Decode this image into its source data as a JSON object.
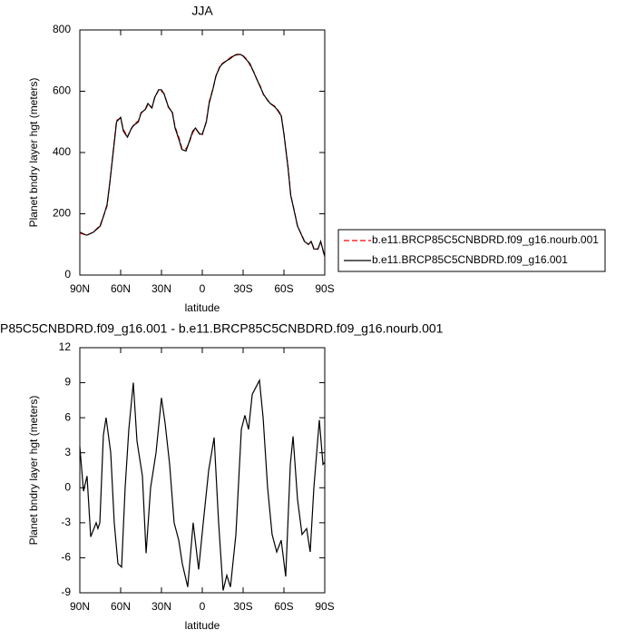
{
  "chart_data": [
    {
      "type": "line",
      "title": "JJA",
      "x_label": "latitude",
      "y_label": "Planet bndry layer hgt (meters)",
      "x": [
        90,
        85,
        80,
        75,
        72,
        70,
        68,
        65,
        63,
        60,
        58,
        55,
        52,
        50,
        47,
        45,
        42,
        40,
        37,
        35,
        32,
        30,
        28,
        25,
        22,
        20,
        17,
        15,
        12,
        10,
        7,
        5,
        2,
        0,
        -3,
        -5,
        -8,
        -10,
        -13,
        -15,
        -18,
        -20,
        -23,
        -25,
        -28,
        -30,
        -33,
        -35,
        -38,
        -40,
        -43,
        -45,
        -48,
        -50,
        -53,
        -55,
        -58,
        -60,
        -63,
        -65,
        -68,
        -70,
        -73,
        -75,
        -78,
        -80,
        -82,
        -85,
        -87,
        -90
      ],
      "series": [
        {
          "name": "b.e11.BRCP85C5CNBDRD.f09_g16.nourb.001",
          "color": "#ff0000",
          "dashed": true,
          "values": [
            137,
            130,
            140,
            163,
            200,
            225,
            298,
            425,
            505,
            512,
            475,
            452,
            478,
            494,
            503,
            528,
            540,
            555,
            547,
            578,
            606,
            600,
            592,
            548,
            532,
            484,
            446,
            414,
            412,
            428,
            465,
            478,
            462,
            458,
            502,
            564,
            612,
            648,
            683,
            692,
            700,
            708,
            717,
            718,
            721,
            716,
            703,
            685,
            662,
            640,
            613,
            588,
            572,
            560,
            552,
            542,
            523,
            462,
            355,
            262,
            202,
            158,
            132,
            112,
            100,
            110,
            88,
            85,
            108,
            58
          ]
        },
        {
          "name": "b.e11.BRCP85C5CNBDRD.f09_g16.001",
          "color": "#000000",
          "dashed": false,
          "values": [
            140,
            130,
            140,
            160,
            200,
            230,
            300,
            420,
            500,
            515,
            470,
            450,
            480,
            490,
            500,
            530,
            540,
            560,
            545,
            580,
            605,
            605,
            590,
            550,
            530,
            480,
            440,
            410,
            405,
            430,
            470,
            480,
            460,
            460,
            500,
            560,
            610,
            650,
            680,
            690,
            700,
            705,
            715,
            720,
            720,
            715,
            700,
            690,
            660,
            640,
            610,
            590,
            570,
            560,
            550,
            540,
            520,
            460,
            350,
            260,
            200,
            160,
            130,
            110,
            100,
            110,
            85,
            85,
            110,
            60
          ]
        }
      ],
      "xlim": [
        90,
        -90
      ],
      "xticks": [
        {
          "value": 90,
          "label": "90N"
        },
        {
          "value": 60,
          "label": "60N"
        },
        {
          "value": 30,
          "label": "30N"
        },
        0,
        {
          "value": -30,
          "label": "30S"
        },
        {
          "value": -60,
          "label": "60S"
        },
        {
          "value": -90,
          "label": "90S"
        }
      ],
      "ylim": [
        0,
        800
      ],
      "yticks": [
        0,
        200,
        400,
        600,
        800
      ],
      "legend": "right"
    },
    {
      "type": "line",
      "title": "P85C5CNBDRD.f09_g16.001 - b.e11.BRCP85C5CNBDRD.f09_g16.nourb.001",
      "x_label": "latitude",
      "y_label": "Planet bndry layer hgt (meters)",
      "x": [
        90,
        87.3,
        84.7,
        82,
        78,
        76.7,
        75.3,
        72.7,
        70.7,
        67.3,
        64.7,
        62,
        59.3,
        56.7,
        54,
        50.7,
        48,
        44,
        41.3,
        38,
        34,
        30,
        27.3,
        24,
        20.7,
        17.3,
        14.7,
        10.7,
        6.7,
        2.7,
        -0.7,
        -4.7,
        -8.7,
        -12,
        -15.3,
        -18,
        -20.7,
        -24.7,
        -28.7,
        -31.3,
        -34,
        -36.7,
        -42,
        -44.7,
        -48,
        -51.3,
        -54.7,
        -58,
        -61.3,
        -64.7,
        -66.7,
        -70,
        -73.3,
        -76.7,
        -79.3,
        -82,
        -86,
        -88.7,
        -90
      ],
      "values": [
        3.5,
        -0.3,
        1,
        -4.2,
        -3,
        -3.5,
        -3,
        4.5,
        6,
        3,
        -3,
        -6.5,
        -6.8,
        0,
        5,
        9,
        4,
        1,
        -5.6,
        0,
        3,
        7.7,
        5.5,
        2,
        -3,
        -4.5,
        -6.5,
        -8.5,
        -3,
        -7,
        -3,
        1.5,
        4.3,
        -3,
        -8.8,
        -7.5,
        -8.5,
        -4,
        5,
        6.2,
        5,
        8,
        9.2,
        6,
        0,
        -4,
        -5.5,
        -4.5,
        -7.6,
        2,
        4.4,
        -1,
        -4,
        -3.5,
        -5.5,
        0,
        5.8,
        2,
        2.2
      ],
      "color": "#000000",
      "xlim": [
        90,
        -90
      ],
      "xticks": [
        {
          "value": 90,
          "label": "90N"
        },
        {
          "value": 60,
          "label": "60N"
        },
        {
          "value": 30,
          "label": "30N"
        },
        0,
        {
          "value": -30,
          "label": "30S"
        },
        {
          "value": -60,
          "label": "60S"
        },
        {
          "value": -90,
          "label": "90S"
        }
      ],
      "ylim": [
        -9,
        12
      ],
      "yticks": [
        -9,
        -6,
        -3,
        0,
        3,
        6,
        9,
        12
      ]
    }
  ]
}
